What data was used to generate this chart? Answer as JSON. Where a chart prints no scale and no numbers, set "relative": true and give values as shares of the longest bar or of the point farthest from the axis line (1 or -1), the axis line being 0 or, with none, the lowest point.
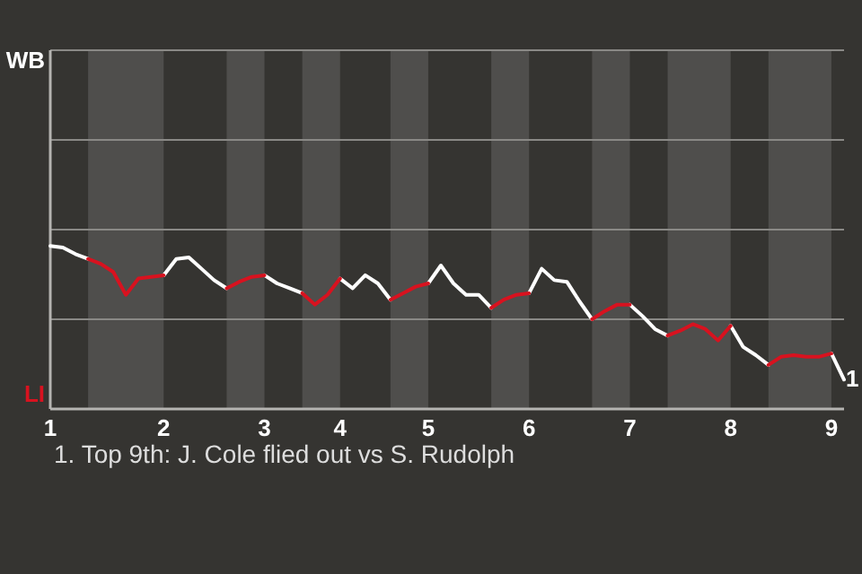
{
  "chart_data": {
    "type": "line",
    "relative": true,
    "categories": [
      "1",
      null,
      null,
      null,
      null,
      null,
      null,
      null,
      null,
      "2",
      null,
      null,
      null,
      null,
      null,
      null,
      null,
      "3",
      null,
      null,
      null,
      null,
      null,
      "4",
      null,
      null,
      null,
      null,
      null,
      null,
      "5",
      null,
      null,
      null,
      null,
      null,
      null,
      null,
      "6",
      null,
      null,
      null,
      null,
      null,
      null,
      null,
      "7",
      null,
      null,
      null,
      null,
      null,
      null,
      null,
      "8",
      null,
      null,
      null,
      null,
      null,
      null,
      null,
      "9",
      null
    ],
    "marker": "none",
    "line_style": "solid",
    "ref_lines": [
      {
        "axis": "y",
        "value": 0.55,
        "color": "#8a8986"
      },
      {
        "axis": "y",
        "value": 1.1,
        "color": "#8a8986"
      },
      {
        "axis": "y",
        "value": 1.65,
        "color": "#8a8986"
      },
      {
        "axis": "y",
        "value": 2.2,
        "color": "#8a8986"
      }
    ],
    "series": [
      {
        "name": "WB",
        "color": "#ffffff",
        "values": [
          1,
          0.99,
          0.95,
          0.92,
          null,
          null,
          null,
          null,
          null,
          0.82,
          0.92,
          0.93,
          0.86,
          0.79,
          0.74,
          null,
          null,
          0.82,
          0.77,
          0.74,
          0.71,
          null,
          null,
          0.8,
          0.74,
          0.82,
          0.77,
          0.67,
          null,
          null,
          0.77,
          0.88,
          0.77,
          0.7,
          0.7,
          0.62,
          null,
          null,
          0.71,
          0.86,
          0.79,
          0.78,
          0.66,
          0.55,
          null,
          null,
          0.64,
          0.57,
          0.49,
          0.45,
          null,
          null,
          null,
          null,
          0.51,
          0.38,
          0.33,
          0.27,
          null,
          null,
          null,
          null,
          0.34,
          0.18
        ]
      },
      {
        "name": "LI",
        "color": "#d8121f",
        "values": [
          null,
          null,
          null,
          0.92,
          0.89,
          0.84,
          0.7,
          0.8,
          0.81,
          0.82,
          null,
          null,
          null,
          null,
          0.74,
          0.78,
          0.81,
          0.82,
          null,
          null,
          0.71,
          0.64,
          0.7,
          0.8,
          null,
          null,
          null,
          0.67,
          0.71,
          0.75,
          0.77,
          null,
          null,
          null,
          null,
          0.62,
          0.67,
          0.7,
          0.71,
          null,
          null,
          null,
          null,
          0.55,
          0.6,
          0.64,
          0.64,
          null,
          null,
          0.45,
          0.48,
          0.52,
          0.49,
          0.42,
          0.51,
          null,
          null,
          0.27,
          0.32,
          0.33,
          0.32,
          0.32,
          0.34,
          null
        ]
      }
    ],
    "annotations": [
      "1",
      "1. Top 9th: J. Cole flied out vs S. Rudolph"
    ]
  }
}
